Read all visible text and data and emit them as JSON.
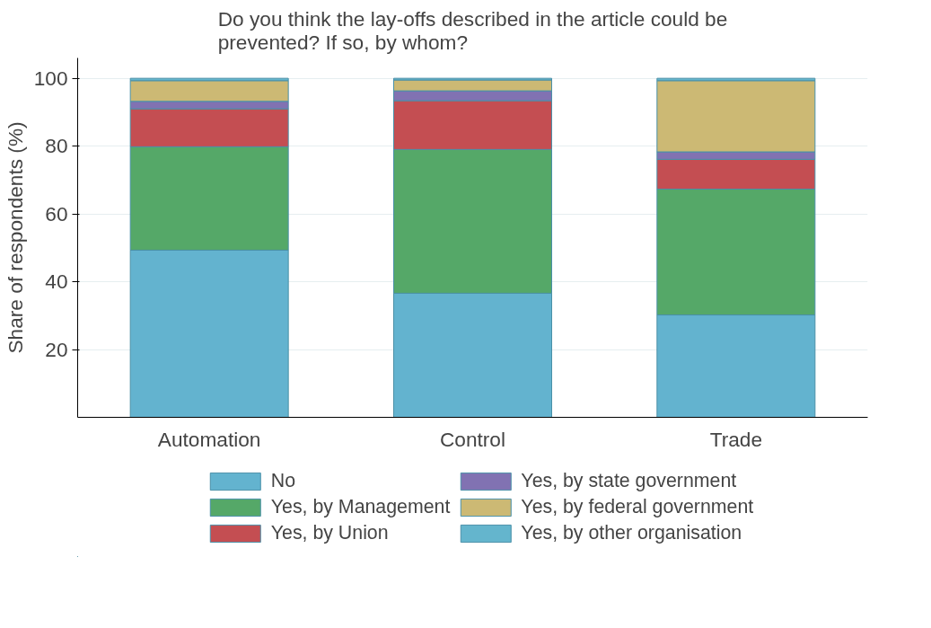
{
  "chart_data": {
    "type": "bar",
    "stacked": true,
    "title": "Do you think the lay-offs described in the article could be prevented? If so, by whom?",
    "ylabel": "Share of respondents (%)",
    "categories": [
      "Automation",
      "Control",
      "Trade"
    ],
    "series": [
      {
        "name": "No",
        "color": "#63b3cf",
        "values": [
          49.3,
          36.6,
          30.2
        ]
      },
      {
        "name": "Yes, by Management",
        "color": "#55a868",
        "values": [
          30.5,
          42.4,
          37.1
        ]
      },
      {
        "name": "Yes, by Union",
        "color": "#c44e52",
        "values": [
          11.2,
          14.4,
          8.8
        ]
      },
      {
        "name": "Yes, by state government",
        "color": "#8172b2",
        "values": [
          2.2,
          2.9,
          2.2
        ]
      },
      {
        "name": "Yes, by federal government",
        "color": "#ccb974",
        "values": [
          6.1,
          3.2,
          21.0
        ]
      },
      {
        "name": "Yes, by other organisation",
        "color": "#64b5cd",
        "values": [
          0.7,
          0.5,
          0.7
        ]
      }
    ],
    "ylim": [
      0,
      106
    ],
    "yticks": [
      20,
      40,
      60,
      80,
      100
    ],
    "grid": "y",
    "legend": "bottom"
  }
}
